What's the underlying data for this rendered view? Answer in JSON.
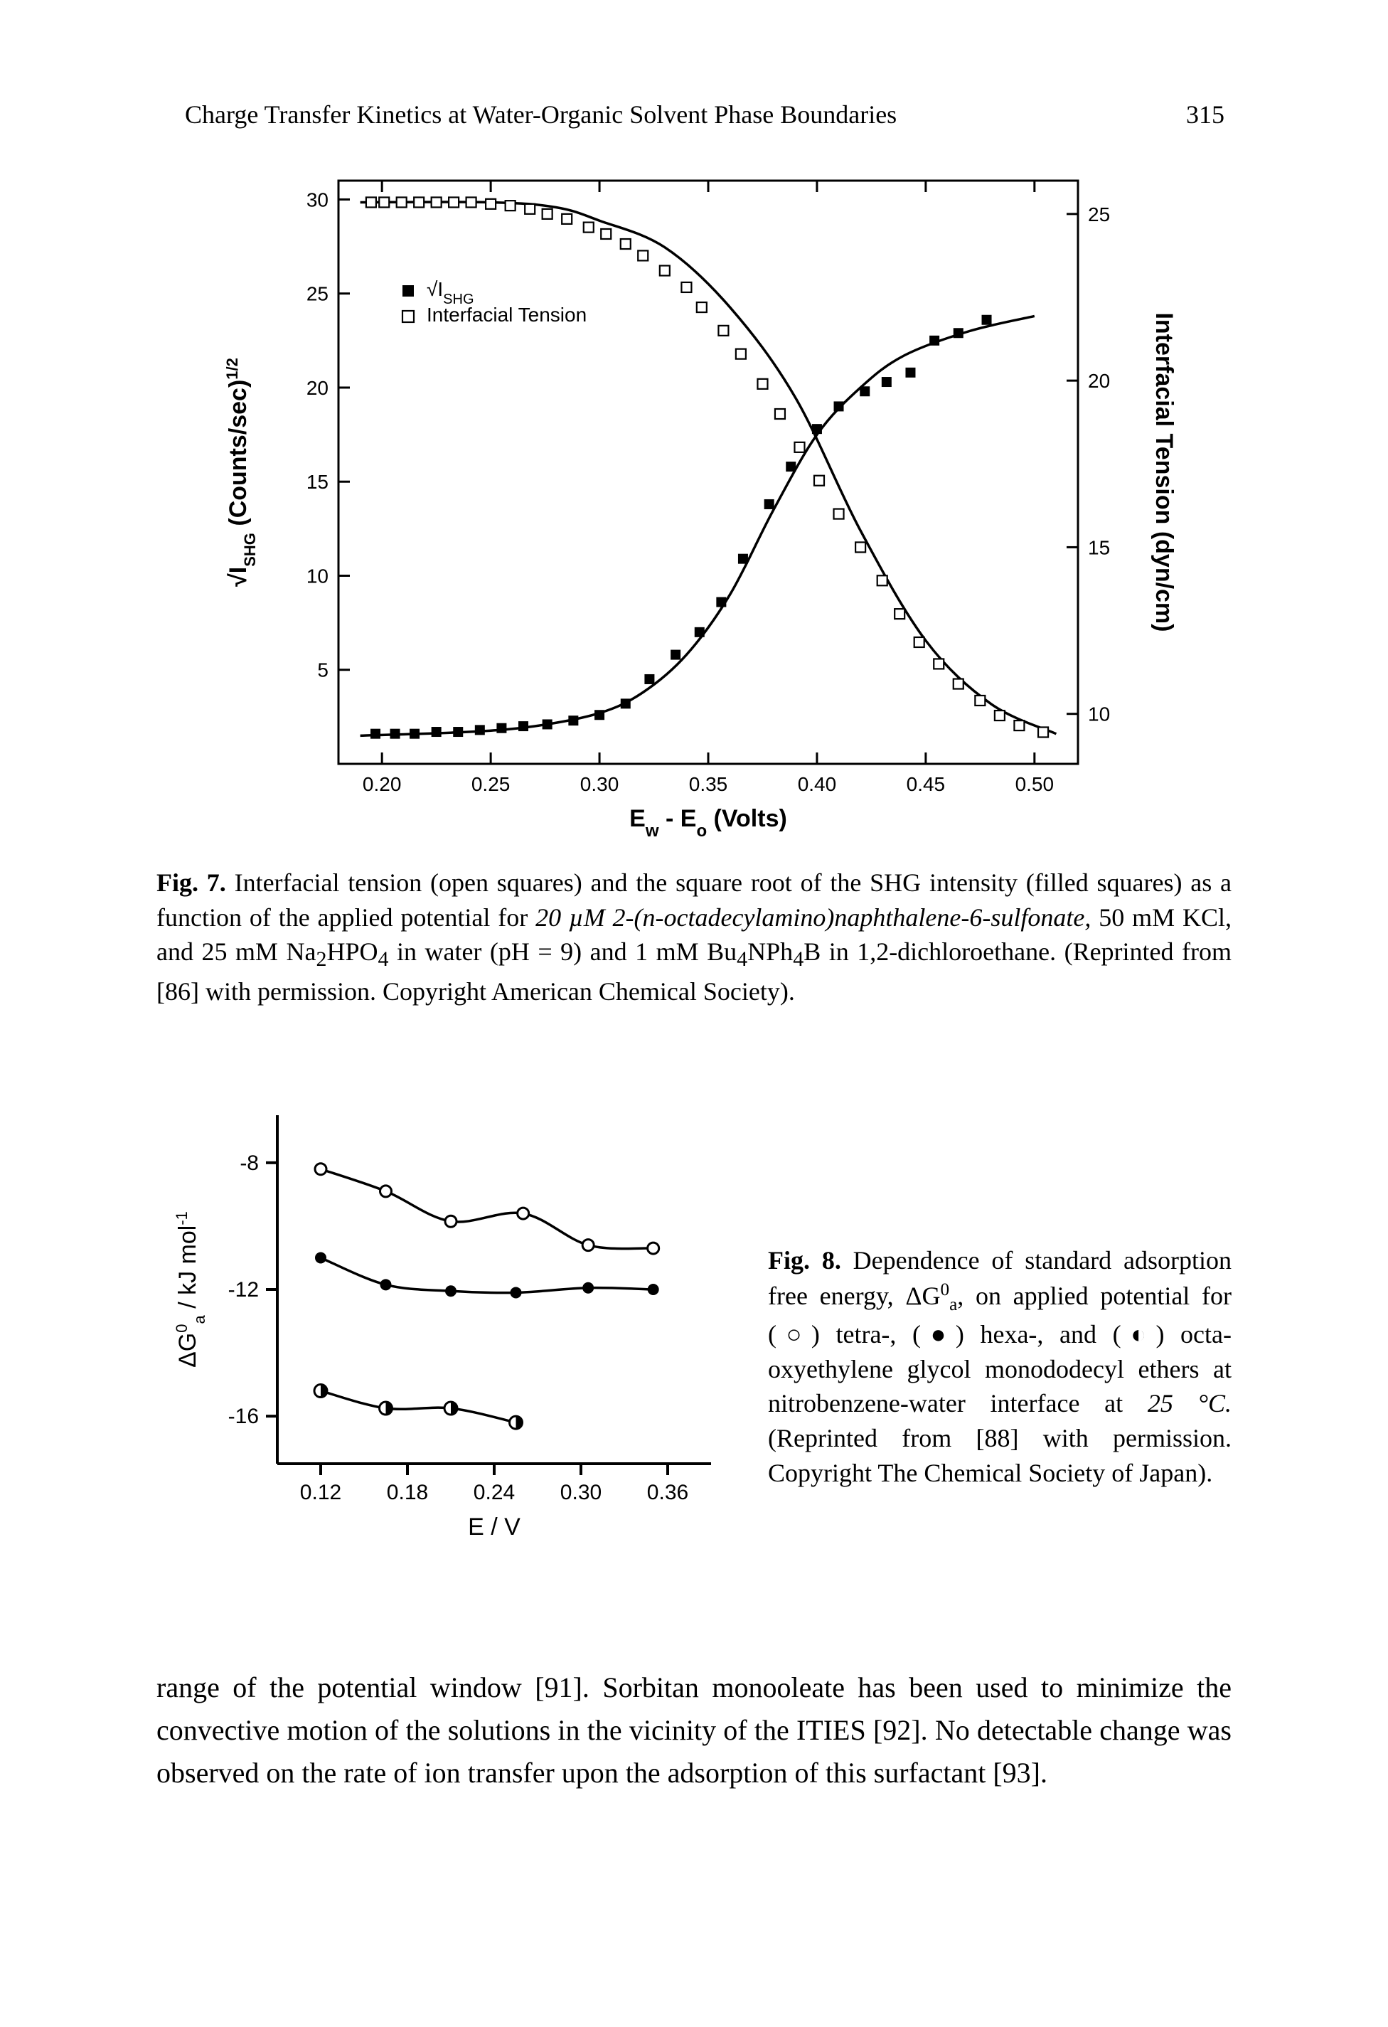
{
  "header": {
    "running_title": "Charge Transfer Kinetics at Water-Organic Solvent Phase Boundaries",
    "page_number": "315"
  },
  "fig7": {
    "type": "dual-axis-scatter",
    "background_color": "#ffffff",
    "axis_color": "#000000",
    "tick_fontsize": 28,
    "label_fontsize": 34,
    "x": {
      "label_plain": "E",
      "label_sub": "w",
      "label_mid": " - E",
      "label_sub2": "o",
      "label_tail": " (Volts)",
      "min": 0.18,
      "max": 0.52,
      "ticks": [
        0.2,
        0.25,
        0.3,
        0.35,
        0.4,
        0.45,
        0.5
      ],
      "tick_labels": [
        "0.20",
        "0.25",
        "0.30",
        "0.35",
        "0.40",
        "0.45",
        "0.50"
      ]
    },
    "yL": {
      "label_pre": "√I",
      "label_sub": "SHG",
      "label_post": " (Counts/sec)",
      "label_sup": "1/2",
      "min": 0,
      "max": 31,
      "ticks": [
        5,
        10,
        15,
        20,
        25,
        30
      ],
      "tick_labels": [
        "5",
        "10",
        "15",
        "20",
        "25",
        "30"
      ]
    },
    "yR": {
      "label": "Interfacial Tension (dyn/cm)",
      "min": 8.5,
      "max": 26,
      "ticks": [
        10,
        15,
        20,
        25
      ],
      "tick_labels": [
        "10",
        "15",
        "20",
        "25"
      ]
    },
    "legend": {
      "items": [
        {
          "marker": "filled-square",
          "label_pre": "√I",
          "label_sub": "SHG"
        },
        {
          "marker": "open-square",
          "label": "Interfacial Tension"
        }
      ]
    },
    "series_shg": {
      "marker": "filled-square",
      "color": "#000000",
      "size": 14,
      "points": [
        [
          0.197,
          1.6
        ],
        [
          0.206,
          1.6
        ],
        [
          0.215,
          1.6
        ],
        [
          0.225,
          1.7
        ],
        [
          0.235,
          1.7
        ],
        [
          0.245,
          1.8
        ],
        [
          0.255,
          1.9
        ],
        [
          0.265,
          2.0
        ],
        [
          0.276,
          2.1
        ],
        [
          0.288,
          2.3
        ],
        [
          0.3,
          2.6
        ],
        [
          0.312,
          3.2
        ],
        [
          0.323,
          4.5
        ],
        [
          0.335,
          5.8
        ],
        [
          0.346,
          7.0
        ],
        [
          0.356,
          8.6
        ],
        [
          0.366,
          10.9
        ],
        [
          0.378,
          13.8
        ],
        [
          0.388,
          15.8
        ],
        [
          0.4,
          17.8
        ],
        [
          0.41,
          19.0
        ],
        [
          0.422,
          19.8
        ],
        [
          0.432,
          20.3
        ],
        [
          0.443,
          20.8
        ],
        [
          0.454,
          22.5
        ],
        [
          0.465,
          22.9
        ],
        [
          0.478,
          23.6
        ]
      ]
    },
    "series_tension": {
      "marker": "open-square",
      "color": "#000000",
      "size": 14,
      "points_right": [
        [
          0.195,
          25.35
        ],
        [
          0.201,
          25.35
        ],
        [
          0.209,
          25.35
        ],
        [
          0.217,
          25.35
        ],
        [
          0.225,
          25.35
        ],
        [
          0.233,
          25.35
        ],
        [
          0.241,
          25.35
        ],
        [
          0.25,
          25.3
        ],
        [
          0.259,
          25.25
        ],
        [
          0.268,
          25.15
        ],
        [
          0.276,
          25.0
        ],
        [
          0.285,
          24.85
        ],
        [
          0.295,
          24.6
        ],
        [
          0.303,
          24.4
        ],
        [
          0.312,
          24.1
        ],
        [
          0.32,
          23.75
        ],
        [
          0.33,
          23.3
        ],
        [
          0.34,
          22.8
        ],
        [
          0.347,
          22.2
        ],
        [
          0.357,
          21.5
        ],
        [
          0.365,
          20.8
        ],
        [
          0.375,
          19.9
        ],
        [
          0.383,
          19.0
        ],
        [
          0.392,
          18.0
        ],
        [
          0.401,
          17.0
        ],
        [
          0.41,
          16.0
        ],
        [
          0.42,
          15.0
        ],
        [
          0.43,
          14.0
        ],
        [
          0.438,
          13.0
        ],
        [
          0.447,
          12.15
        ],
        [
          0.456,
          11.5
        ],
        [
          0.465,
          10.9
        ],
        [
          0.475,
          10.4
        ],
        [
          0.484,
          9.95
        ],
        [
          0.493,
          9.65
        ],
        [
          0.504,
          9.45
        ]
      ]
    },
    "curve_shg": [
      [
        0.19,
        1.5
      ],
      [
        0.24,
        1.7
      ],
      [
        0.27,
        2.0
      ],
      [
        0.3,
        2.7
      ],
      [
        0.32,
        3.8
      ],
      [
        0.34,
        5.8
      ],
      [
        0.36,
        9.0
      ],
      [
        0.38,
        13.5
      ],
      [
        0.4,
        17.5
      ],
      [
        0.42,
        20.0
      ],
      [
        0.44,
        21.7
      ],
      [
        0.47,
        23.0
      ],
      [
        0.5,
        23.8
      ]
    ],
    "curve_tension": [
      [
        0.19,
        25.35
      ],
      [
        0.25,
        25.35
      ],
      [
        0.28,
        25.2
      ],
      [
        0.3,
        24.8
      ],
      [
        0.33,
        24.0
      ],
      [
        0.36,
        22.2
      ],
      [
        0.39,
        19.5
      ],
      [
        0.42,
        15.5
      ],
      [
        0.45,
        12.2
      ],
      [
        0.48,
        10.3
      ],
      [
        0.51,
        9.4
      ]
    ]
  },
  "fig7_caption": {
    "lead": "Fig. 7.",
    "t1": " Interfacial tension (open squares) and the square root of the SHG intensity (filled squares) as a function of the applied potential for ",
    "i1": "20 µM 2-(n-octadecylamino)naphthalene-6-sulfonate,",
    "t2": " 50 mM KCl, and 25 mM Na",
    "sub1": "2",
    "t3": "HPO",
    "sub2": "4",
    "t4": " in water (pH = 9) and 1 mM Bu",
    "sub3": "4",
    "t5": "NPh",
    "sub4": "4",
    "t6": "B in 1,2-dichloroethane. (Reprinted from [86] with permission. Copyright American Chemical Society)."
  },
  "fig8": {
    "type": "scatter-line",
    "background_color": "#ffffff",
    "axis_color": "#000000",
    "tick_fontsize": 30,
    "label_fontsize": 34,
    "x": {
      "label": "E / V",
      "min": 0.09,
      "max": 0.39,
      "ticks": [
        0.12,
        0.18,
        0.24,
        0.3,
        0.36
      ],
      "tick_labels": [
        "0.12",
        "0.18",
        "0.24",
        "0.30",
        "0.36"
      ]
    },
    "y": {
      "label_pre": "ΔG",
      "label_sup": "0",
      "label_sub": "a",
      "label_post": " / kJ mol",
      "label_sup2": "-1",
      "min": -17.5,
      "max": -6.5,
      "ticks": [
        -16,
        -12,
        -8
      ],
      "tick_labels": [
        "-16",
        "-12",
        "-8"
      ]
    },
    "series": [
      {
        "name": "tetra",
        "marker": "open-circle",
        "color": "#000000",
        "size": 16,
        "points": [
          [
            0.12,
            -8.2
          ],
          [
            0.165,
            -8.9
          ],
          [
            0.21,
            -9.85
          ],
          [
            0.26,
            -9.6
          ],
          [
            0.305,
            -10.6
          ],
          [
            0.35,
            -10.7
          ]
        ]
      },
      {
        "name": "hexa",
        "marker": "filled-circle",
        "color": "#000000",
        "size": 16,
        "points": [
          [
            0.12,
            -11.0
          ],
          [
            0.165,
            -11.85
          ],
          [
            0.21,
            -12.05
          ],
          [
            0.255,
            -12.1
          ],
          [
            0.305,
            -11.95
          ],
          [
            0.35,
            -12.0
          ]
        ]
      },
      {
        "name": "octa",
        "marker": "half-circle",
        "color": "#000000",
        "size": 18,
        "points": [
          [
            0.12,
            -15.2
          ],
          [
            0.165,
            -15.75
          ],
          [
            0.21,
            -15.75
          ],
          [
            0.255,
            -16.2
          ]
        ]
      }
    ]
  },
  "fig8_caption": {
    "lead": "Fig. 8.",
    "t1": " Dependence of standard adsorption free energy, ΔG",
    "sup1": "0",
    "sub1": "a",
    "t2": ", on applied potential for (○) tetra-, (●) hexa-, and (◐) octa-oxyethylene glycol monododecyl ethers at nitrobenzene-water interface at ",
    "i1": "25 °C.",
    "t3": " (Reprinted from [88] with permission. Copyright The Chemical Society of Japan)."
  },
  "body": {
    "p1": "range of the potential window [91]. Sorbitan monooleate has been used to minimize the convective motion of the solutions in the vicinity of the ITIES [92]. No detectable change was observed on the rate of ion transfer upon the adsorption of this surfactant [93]."
  }
}
